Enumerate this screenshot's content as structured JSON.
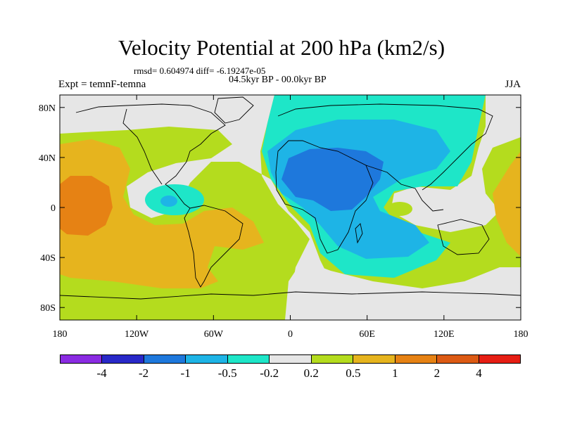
{
  "title": "Velocity Potential at 200 hPa (km2/s)",
  "stats": "rmsd= 0.604974 diff= -6.19247e-05",
  "experiment": "Expt = temnF-temna",
  "period": "04.5kyr BP - 00.0kyr BP",
  "season": "JJA",
  "map": {
    "projection": "cylindrical equidistant",
    "lon_range": [
      -180,
      180
    ],
    "lat_range": [
      -90,
      90
    ],
    "x_tick_labels": [
      "180",
      "120W",
      "60W",
      "0",
      "60E",
      "120E",
      "180"
    ],
    "x_tick_values": [
      -180,
      -120,
      -60,
      0,
      60,
      120,
      180
    ],
    "y_tick_labels": [
      "80N",
      "40N",
      "0",
      "40S",
      "80S"
    ],
    "y_tick_values": [
      80,
      40,
      0,
      -40,
      -80
    ]
  },
  "colorbar": {
    "colors": [
      "#8a2be2",
      "#2828c8",
      "#1e78dc",
      "#1eb4e6",
      "#1ee6c8",
      "#e6e6e6",
      "#b4dc1e",
      "#e6b41e",
      "#e68214",
      "#dc5a14",
      "#e61e14"
    ],
    "labels": [
      "-4",
      "-2",
      "-1",
      "-0.5",
      "-0.2",
      "0.2",
      "0.5",
      "1",
      "2",
      "4"
    ]
  }
}
